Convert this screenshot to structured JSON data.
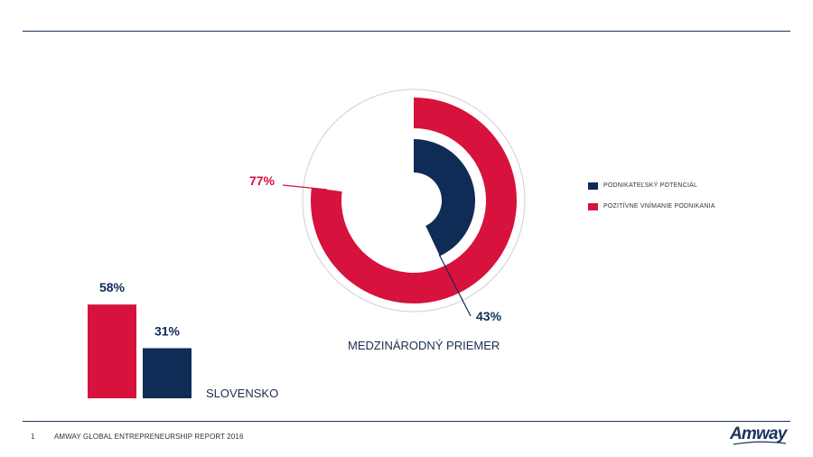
{
  "colors": {
    "navy": "#0f2c57",
    "red": "#d7123d",
    "rule": "#1b3560",
    "ring_outline": "#d0d0d0"
  },
  "chart_data": [
    {
      "type": "pie",
      "variant": "nested-donut",
      "caption": "MEDZINÁRODNÝ PRIEMER",
      "series": [
        {
          "name": "PODNIKATEĽSKÝ POTENCIÁL",
          "value": 43,
          "label": "43%",
          "ring": "inner"
        },
        {
          "name": "POZITÍVNE VNÍMANIE PODNIKANIA",
          "value": 77,
          "label": "77%",
          "ring": "outer"
        }
      ]
    },
    {
      "type": "bar",
      "categories": [
        "SLOVENSKO"
      ],
      "series": [
        {
          "name": "POZITÍVNE VNÍMANIE PODNIKANIA",
          "values": [
            58
          ],
          "labels": [
            "58%"
          ]
        },
        {
          "name": "PODNIKATEĽSKÝ POTENCIÁL",
          "values": [
            31
          ],
          "labels": [
            "31%"
          ]
        }
      ],
      "ylim": [
        0,
        100
      ]
    }
  ],
  "legend": [
    {
      "label": "PODNIKATEĽSKÝ POTENCIÁL",
      "color": "#0f2c57"
    },
    {
      "label": "POZITÍVNE VNÍMANIE PODNIKANIA",
      "color": "#d7123d"
    }
  ],
  "footer": {
    "page_number": "1",
    "title": "AMWAY GLOBAL ENTREPRENEURSHIP REPORT 2016"
  },
  "logo_text": "Amway"
}
